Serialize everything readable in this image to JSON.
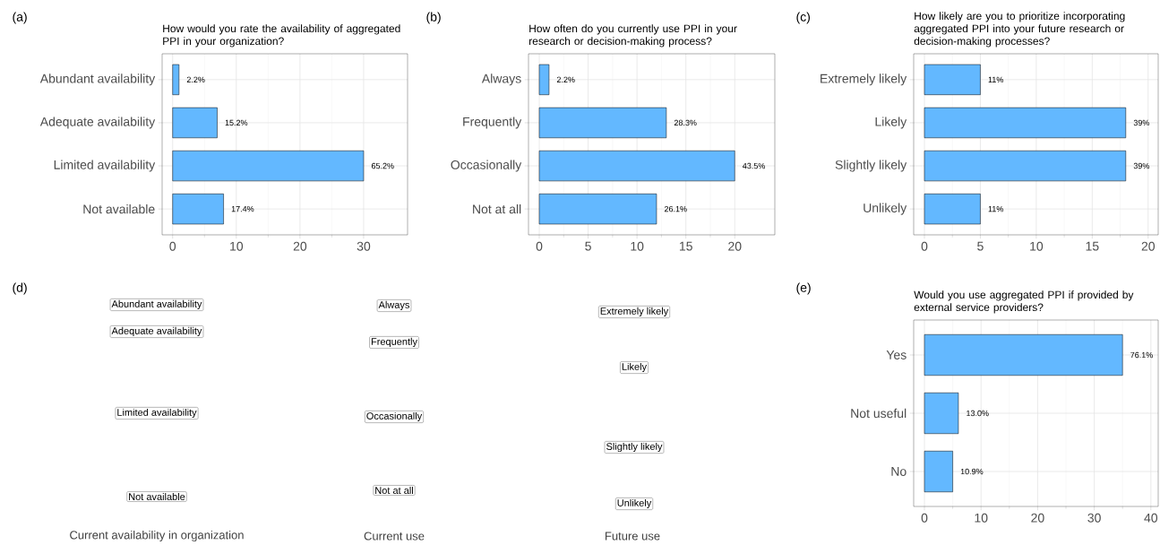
{
  "chart_data": [
    {
      "type": "bar",
      "orientation": "horizontal",
      "title": "How would you rate the availability of aggregated PPI in your organization?",
      "categories": [
        "Abundant availability",
        "Adequate availability",
        "Limited availability",
        "Not available"
      ],
      "values": [
        1,
        7,
        30,
        8
      ],
      "color": "#63b8ff",
      "xlim": [
        -1.65,
        36.9
      ],
      "xticks": [
        0,
        10,
        20,
        30
      ],
      "grid": true,
      "annotations": [
        "(a)",
        {
          "text": "2.2%",
          "x": 1,
          "y": "Abundant availability"
        },
        {
          "text": "15.2%",
          "x": 7,
          "y": "Adequate availability"
        },
        {
          "text": "65.2%",
          "x": 30,
          "y": "Limited availability"
        },
        {
          "text": "17.4%",
          "x": 8,
          "y": "Not available"
        }
      ]
    },
    {
      "type": "bar",
      "orientation": "horizontal",
      "title": "How often do you currently use PPI in your research or decision-making process?",
      "categories": [
        "Always",
        "Frequently",
        "Occasionally",
        "Not at all"
      ],
      "values": [
        1,
        13,
        20,
        12
      ],
      "color": "#63b8ff",
      "xlim": [
        -1.1,
        24.1
      ],
      "xticks": [
        0,
        5,
        10,
        15,
        20
      ],
      "grid": true,
      "annotations": [
        "(b)",
        {
          "text": "2.2%",
          "x": 1,
          "y": "Always"
        },
        {
          "text": "28.3%",
          "x": 13,
          "y": "Frequently"
        },
        {
          "text": "43.5%",
          "x": 20,
          "y": "Occasionally"
        },
        {
          "text": "26.1%",
          "x": 12,
          "y": "Not at all"
        }
      ]
    },
    {
      "type": "bar",
      "orientation": "horizontal",
      "title": "How likely are you to prioritize incorporating aggregated PPI into your future research or decision-making processes?",
      "categories": [
        "Extremely likely",
        "Likely",
        "Slightly likely",
        "Unlikely"
      ],
      "values": [
        5,
        18,
        18,
        5
      ],
      "color": "#63b8ff",
      "xlim": [
        -0.96,
        20.9
      ],
      "xticks": [
        0,
        5,
        10,
        15,
        20
      ],
      "grid": true,
      "annotations": [
        "(c)",
        {
          "text": "11%",
          "x": 5,
          "y": "Extremely likely"
        },
        {
          "text": "39%",
          "x": 18,
          "y": "Likely"
        },
        {
          "text": "39%",
          "x": 18,
          "y": "Slightly likely"
        },
        {
          "text": "11%",
          "x": 5,
          "y": "Unlikely"
        }
      ]
    },
    {
      "type": "other",
      "annotations": [
        "(d)",
        "Abundant availability",
        "Adequate availability",
        "Limited availability",
        "Not available",
        "Always",
        "Frequently",
        "Occasionally",
        "Not at all",
        "Extremely likely",
        "Likely",
        "Slightly likely",
        "Unlikely",
        "Current availability in organization",
        "Current use",
        "Future use"
      ]
    },
    {
      "type": "bar",
      "orientation": "horizontal",
      "title": "Would you use aggregated PPI if provided by external service providers?",
      "categories": [
        "Yes",
        "Not useful",
        "No"
      ],
      "values": [
        35,
        6,
        5
      ],
      "color": "#63b8ff",
      "xlim": [
        -1.9,
        41.3
      ],
      "xticks": [
        0,
        10,
        20,
        30,
        40
      ],
      "grid": true,
      "annotations": [
        "(e)",
        {
          "text": "76.1%",
          "x": 35,
          "y": "Yes"
        },
        {
          "text": "13.0%",
          "x": 6,
          "y": "Not useful"
        },
        {
          "text": "10.9%",
          "x": 5,
          "y": "No"
        }
      ]
    }
  ]
}
